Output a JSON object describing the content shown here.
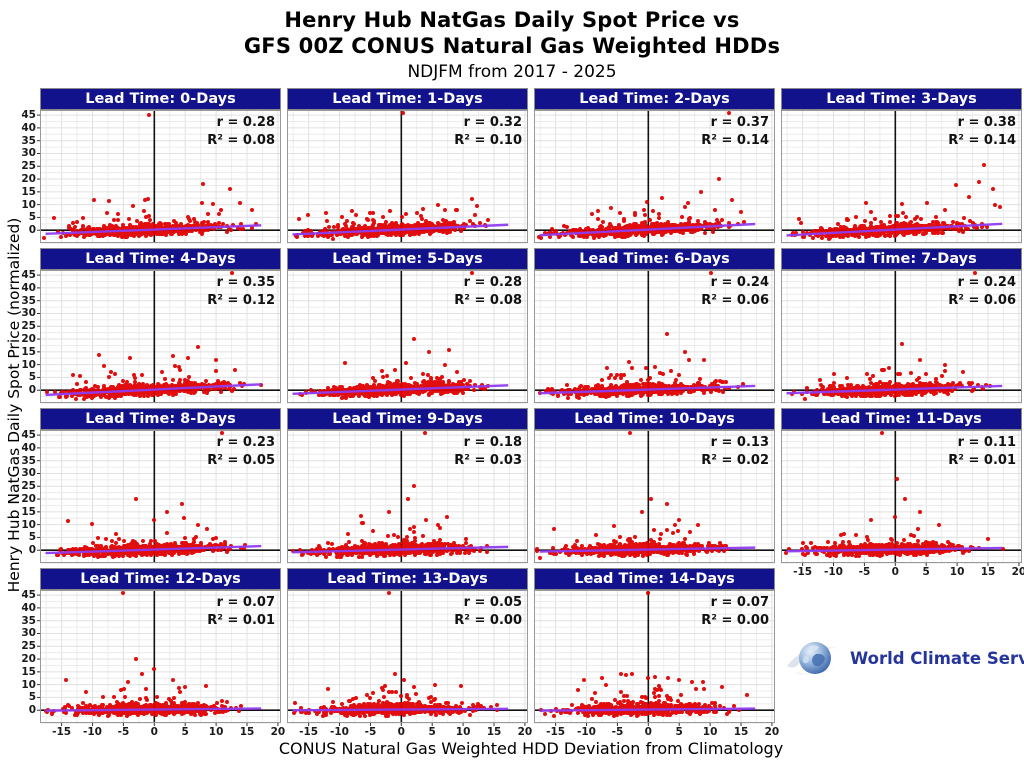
{
  "chart_data": {
    "type": "scatter",
    "title_line1": "Henry Hub NatGas Daily Spot Price vs",
    "title_line2": "GFS 00Z CONUS Natural Gas Weighted HDDs",
    "subtitle": "NDJFM from 2017 - 2025",
    "xlabel": "CONUS Natural Gas Weighted HDD Deviation from Climatology",
    "ylabel": "Henry Hub NatGas Daily Spot Price (normalized)",
    "x_ticks": [
      -15,
      -10,
      -5,
      0,
      5,
      10,
      15,
      20
    ],
    "y_ticks": [
      45,
      40,
      35,
      30,
      25,
      20,
      15,
      10,
      5,
      0
    ],
    "x_range": [
      -18.5,
      20.5
    ],
    "y_range": [
      -5,
      47
    ],
    "grid": true,
    "legend": "none",
    "stats_format": {
      "r_prefix": "r = ",
      "r2_prefix": "R² = "
    },
    "colors": {
      "header_bg": "#12128c",
      "header_text": "#ffffff",
      "point": "#e00000",
      "trend_line": "#8f3bf0",
      "zero_line": "#111111",
      "grid_minor": "#ececec",
      "grid_major": "#e0e0e0",
      "panel_border": "#999999"
    },
    "render": {
      "points_per_panel": 750,
      "slope_factor": 0.34,
      "intercept": 0.25,
      "point_radius": 2.0
    },
    "panels": [
      {
        "lead_time_days": 0,
        "label": "Lead Time: 0-Days",
        "r": 0.28,
        "r2": 0.08,
        "outliers": [
          [
            -0.8,
            45
          ],
          [
            -1.5,
            11.8
          ],
          [
            7.8,
            18.2
          ],
          [
            12.3,
            16
          ],
          [
            9.5,
            10.3
          ],
          [
            13.8,
            10.5
          ],
          [
            15.8,
            8
          ],
          [
            10.5,
            6.5
          ],
          [
            14,
            2.3
          ],
          [
            16.5,
            2.5
          ]
        ]
      },
      {
        "lead_time_days": 1,
        "label": "Lead Time: 1-Days",
        "r": 0.32,
        "r2": 0.1,
        "outliers": [
          [
            0.3,
            46
          ],
          [
            6,
            10
          ],
          [
            9,
            8
          ],
          [
            12,
            6
          ],
          [
            -3,
            5
          ],
          [
            14,
            4
          ]
        ]
      },
      {
        "lead_time_days": 2,
        "label": "Lead Time: 2-Days",
        "r": 0.37,
        "r2": 0.14,
        "outliers": [
          [
            13,
            46
          ],
          [
            11.5,
            20
          ],
          [
            8.5,
            15
          ],
          [
            13.5,
            12
          ],
          [
            6,
            9
          ],
          [
            15,
            7
          ]
        ]
      },
      {
        "lead_time_days": 3,
        "label": "Lead Time: 3-Days",
        "r": 0.38,
        "r2": 0.14,
        "outliers": [
          [
            14.3,
            25.5
          ],
          [
            13.5,
            19
          ],
          [
            9.8,
            17.5
          ],
          [
            15.8,
            16
          ],
          [
            12,
            13
          ],
          [
            16.2,
            10
          ],
          [
            17,
            9
          ],
          [
            8,
            8
          ]
        ]
      },
      {
        "lead_time_days": 4,
        "label": "Lead Time: 4-Days",
        "r": 0.35,
        "r2": 0.12,
        "outliers": [
          [
            12.6,
            46
          ],
          [
            7,
            17
          ],
          [
            10,
            12
          ],
          [
            4,
            9
          ],
          [
            13,
            8
          ],
          [
            -2,
            6
          ]
        ]
      },
      {
        "lead_time_days": 5,
        "label": "Lead Time: 5-Days",
        "r": 0.28,
        "r2": 0.08,
        "outliers": [
          [
            11.4,
            46
          ],
          [
            2,
            20
          ],
          [
            4.5,
            15
          ],
          [
            7,
            10
          ],
          [
            -1,
            8
          ],
          [
            9,
            7
          ]
        ]
      },
      {
        "lead_time_days": 6,
        "label": "Lead Time: 6-Days",
        "r": 0.24,
        "r2": 0.06,
        "outliers": [
          [
            10.2,
            46
          ],
          [
            3,
            22
          ],
          [
            6,
            15
          ],
          [
            9,
            12
          ],
          [
            1,
            9
          ],
          [
            -4,
            6
          ]
        ]
      },
      {
        "lead_time_days": 7,
        "label": "Lead Time: 7-Days",
        "r": 0.24,
        "r2": 0.06,
        "outliers": [
          [
            12.9,
            46
          ],
          [
            1,
            18
          ],
          [
            4,
            12
          ],
          [
            8,
            10
          ],
          [
            -2,
            8
          ],
          [
            11,
            7
          ]
        ]
      },
      {
        "lead_time_days": 8,
        "label": "Lead Time: 8-Days",
        "r": 0.23,
        "r2": 0.05,
        "outliers": [
          [
            11,
            46
          ],
          [
            -3,
            20
          ],
          [
            4.5,
            18
          ],
          [
            2,
            15
          ],
          [
            7,
            10
          ],
          [
            0,
            12
          ]
        ]
      },
      {
        "lead_time_days": 9,
        "label": "Lead Time: 9-Days",
        "r": 0.18,
        "r2": 0.03,
        "outliers": [
          [
            3.8,
            46
          ],
          [
            2,
            25
          ],
          [
            1,
            20
          ],
          [
            -2,
            15
          ],
          [
            4,
            12
          ],
          [
            6,
            10
          ]
        ]
      },
      {
        "lead_time_days": 10,
        "label": "Lead Time: 10-Days",
        "r": 0.13,
        "r2": 0.02,
        "outliers": [
          [
            -3,
            46
          ],
          [
            0.5,
            20
          ],
          [
            3,
            18
          ],
          [
            -1,
            15
          ],
          [
            5,
            12
          ],
          [
            8,
            10
          ]
        ]
      },
      {
        "lead_time_days": 11,
        "label": "Lead Time: 11-Days",
        "r": 0.11,
        "r2": 0.01,
        "outliers": [
          [
            -2.2,
            46
          ],
          [
            0.3,
            28
          ],
          [
            1.5,
            20
          ],
          [
            -4,
            12
          ],
          [
            4,
            15
          ],
          [
            7,
            10
          ]
        ]
      },
      {
        "lead_time_days": 12,
        "label": "Lead Time: 12-Days",
        "r": 0.07,
        "r2": 0.01,
        "outliers": [
          [
            -5,
            46
          ],
          [
            -3,
            20
          ],
          [
            0,
            16
          ],
          [
            -2,
            14
          ],
          [
            3,
            12
          ],
          [
            5,
            9
          ]
        ]
      },
      {
        "lead_time_days": 13,
        "label": "Lead Time: 13-Days",
        "r": 0.05,
        "r2": 0.0,
        "outliers": [
          [
            -2,
            46
          ],
          [
            -1,
            14
          ],
          [
            0.5,
            12
          ],
          [
            5.5,
            10
          ],
          [
            2,
            9
          ],
          [
            -3,
            8
          ]
        ]
      },
      {
        "lead_time_days": 14,
        "label": "Lead Time: 14-Days",
        "r": 0.07,
        "r2": 0.0,
        "outliers": [
          [
            0,
            46
          ],
          [
            1,
            13
          ],
          [
            5,
            12
          ],
          [
            7,
            11
          ],
          [
            12,
            9
          ],
          [
            2,
            8
          ],
          [
            16,
            6
          ]
        ]
      }
    ]
  },
  "logo": {
    "text": "World Climate Service"
  }
}
